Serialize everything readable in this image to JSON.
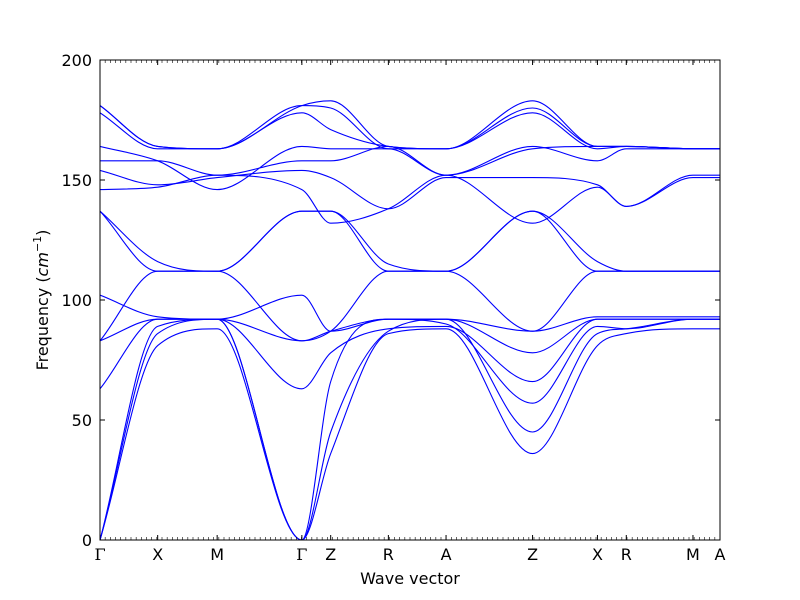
{
  "chart_data": {
    "type": "line",
    "title": "",
    "xlabel": "Wave vector",
    "ylabel": "Frequency ($cm^{-1}$)",
    "ylabel_text": "Frequency (",
    "ylabel_unit_base": "cm",
    "ylabel_unit_exp": "−1",
    "ylabel_close": ")",
    "ylim": [
      0,
      200
    ],
    "yticks": [
      "0",
      "50",
      "100",
      "150",
      "200"
    ],
    "ytick_values": [
      0,
      50,
      100,
      150,
      200
    ],
    "x_range": [
      0,
      17.2
    ],
    "grid": false,
    "line_color": "#0000ff",
    "high_symmetry_points": [
      {
        "label": "Γ",
        "x": 0
      },
      {
        "label": "X",
        "x": 1.6
      },
      {
        "label": "M",
        "x": 3.25
      },
      {
        "label": "Γ",
        "x": 5.6
      },
      {
        "label": "Z",
        "x": 6.4
      },
      {
        "label": "R",
        "x": 8.0
      },
      {
        "label": "A",
        "x": 9.6
      },
      {
        "label": "Z",
        "x": 12.0
      },
      {
        "label": "X",
        "x": 13.8
      },
      {
        "label": "R",
        "x": 14.6
      },
      {
        "label": "M",
        "x": 16.45
      },
      {
        "label": "A",
        "x": 17.2
      }
    ],
    "series": [
      {
        "x": [
          0,
          1.6,
          3.25,
          5.6,
          6.4,
          8.0,
          9.6,
          12.0,
          13.8,
          14.6,
          16.45,
          17.2
        ],
        "y": [
          0,
          81,
          88,
          0,
          36,
          86,
          88,
          36,
          81,
          86,
          88,
          88
        ]
      },
      {
        "x": [
          0,
          1.6,
          3.25,
          5.6,
          6.4,
          8.0,
          9.6,
          12.0,
          13.8,
          14.6,
          16.45,
          17.2
        ],
        "y": [
          0,
          86,
          92,
          0,
          45,
          87,
          92,
          45,
          86,
          88,
          92,
          92
        ]
      },
      {
        "x": [
          0,
          1.6,
          3.25,
          5.6,
          6.4,
          8.0,
          9.6,
          12.0,
          13.8,
          14.6,
          16.45,
          17.2
        ],
        "y": [
          0,
          89,
          92,
          0,
          66,
          92,
          90,
          57,
          89,
          88,
          92,
          92
        ]
      },
      {
        "x": [
          0,
          1.6,
          3.25,
          5.6,
          6.4,
          8.0,
          9.6,
          12.0,
          13.8,
          14.6,
          16.45,
          17.2
        ],
        "y": [
          63,
          92,
          92,
          63,
          78,
          88,
          89,
          66,
          92,
          92,
          92,
          92
        ]
      },
      {
        "x": [
          0,
          1.6,
          3.25,
          5.6,
          6.4,
          8.0,
          9.6,
          12.0,
          13.8,
          14.6,
          16.45,
          17.2
        ],
        "y": [
          83,
          92,
          92,
          83,
          87,
          92,
          92,
          78,
          92,
          92,
          92,
          92
        ]
      },
      {
        "x": [
          0,
          1.6,
          3.25,
          5.6,
          6.4,
          8.0,
          9.6,
          12.0,
          13.8,
          14.6,
          16.45,
          17.2
        ],
        "y": [
          102,
          93,
          92,
          102,
          87,
          92,
          92,
          87,
          93,
          93,
          93,
          93
        ]
      },
      {
        "x": [
          0,
          1.6,
          3.25,
          5.6,
          6.4,
          8.0,
          9.6,
          12.0,
          13.8,
          14.6,
          16.45,
          17.2
        ],
        "y": [
          83,
          112,
          112,
          83,
          87,
          112,
          112,
          87,
          112,
          112,
          112,
          112
        ]
      },
      {
        "x": [
          0,
          1.6,
          3.25,
          5.6,
          6.4,
          8.0,
          9.6,
          12.0,
          13.8,
          14.6,
          16.45,
          17.2
        ],
        "y": [
          137,
          112,
          112,
          137,
          137,
          112,
          112,
          137,
          112,
          112,
          112,
          112
        ]
      },
      {
        "x": [
          0,
          1.6,
          3.25,
          5.6,
          6.4,
          8.0,
          9.6,
          12.0,
          13.8,
          14.6,
          16.45,
          17.2
        ],
        "y": [
          137,
          116,
          112,
          137,
          137,
          115,
          112,
          137,
          116,
          112,
          112,
          112
        ]
      },
      {
        "x": [
          0,
          1.6,
          3.25,
          5.6,
          6.4,
          8.0,
          9.6,
          12.0,
          13.8,
          14.6,
          16.45,
          17.2
        ],
        "y": [
          146,
          147,
          152,
          146,
          132,
          138,
          152,
          132,
          147,
          139,
          151,
          151
        ]
      },
      {
        "x": [
          0,
          1.6,
          3.25,
          5.6,
          6.4,
          8.0,
          9.6,
          12.0,
          13.8,
          14.6,
          16.45,
          17.2
        ],
        "y": [
          154,
          148,
          151,
          154,
          151,
          138,
          151,
          151,
          148,
          139,
          152,
          152
        ]
      },
      {
        "x": [
          0,
          1.6,
          3.25,
          5.6,
          6.4,
          8.0,
          9.6,
          12.0,
          13.8,
          14.6,
          16.45,
          17.2
        ],
        "y": [
          158,
          158,
          152,
          158,
          158,
          164,
          152,
          164,
          158,
          163,
          163,
          163
        ]
      },
      {
        "x": [
          0,
          1.6,
          3.25,
          5.6,
          6.4,
          8.0,
          9.6,
          12.0,
          13.8,
          14.6,
          16.45,
          17.2
        ],
        "y": [
          164,
          158,
          146,
          164,
          163,
          163,
          152,
          163,
          164,
          164,
          163,
          163
        ]
      },
      {
        "x": [
          0,
          1.6,
          3.25,
          5.6,
          6.4,
          8.0,
          9.6,
          12.0,
          13.8,
          14.6,
          16.45,
          17.2
        ],
        "y": [
          178,
          163,
          163,
          178,
          171,
          164,
          163,
          178,
          163,
          164,
          163,
          163
        ]
      },
      {
        "x": [
          0,
          1.6,
          3.25,
          5.6,
          6.4,
          8.0,
          9.6,
          12.0,
          13.8,
          14.6,
          16.45,
          17.2
        ],
        "y": [
          181,
          164,
          163,
          181,
          180,
          163,
          163,
          180,
          164,
          164,
          163,
          163
        ]
      },
      {
        "x": [
          0,
          1.6,
          3.25,
          5.6,
          6.4,
          8.0,
          9.6,
          12.0,
          13.8,
          14.6,
          16.45,
          17.2
        ],
        "y": [
          181,
          164,
          163,
          181,
          183,
          164,
          163,
          183,
          164,
          164,
          163,
          163
        ]
      }
    ]
  }
}
